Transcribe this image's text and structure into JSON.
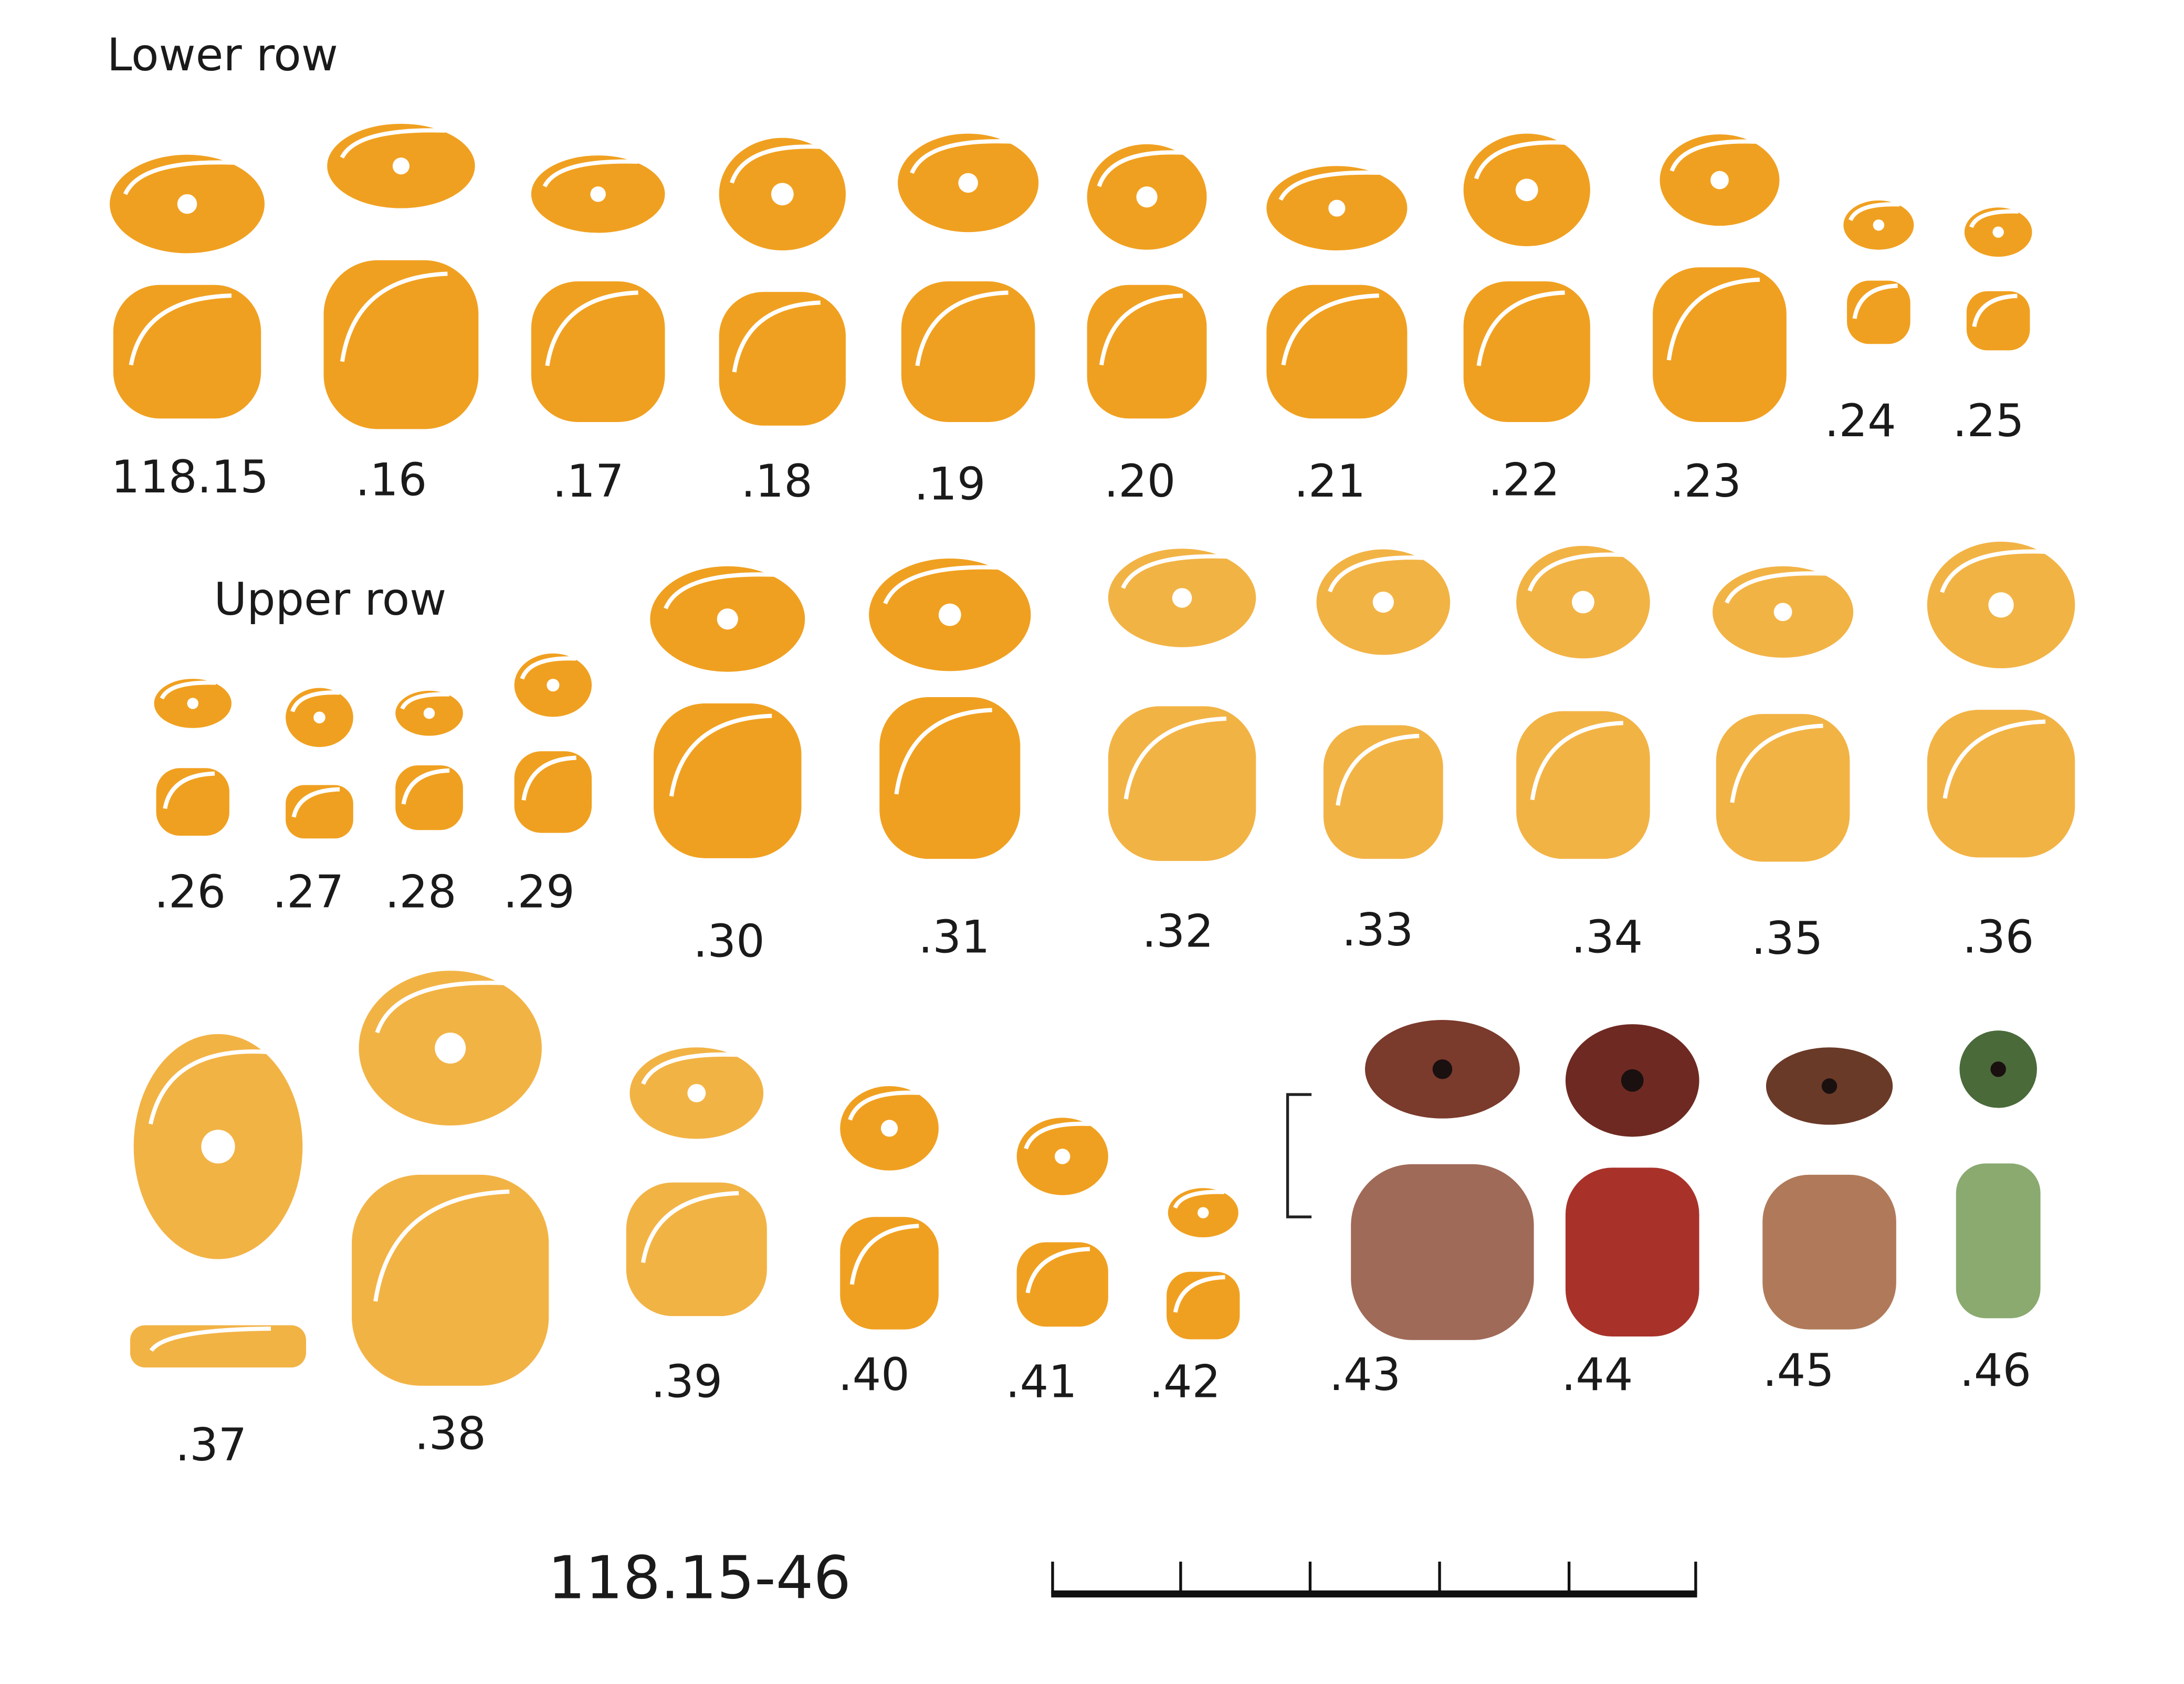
{
  "headings": {
    "lower_row": "Lower row",
    "upper_row": "Upper row"
  },
  "beads": [
    {
      "label": "118.15"
    },
    {
      "label": ".16"
    },
    {
      "label": ".17"
    },
    {
      "label": ".18"
    },
    {
      "label": ".19"
    },
    {
      "label": ".20"
    },
    {
      "label": ".21"
    },
    {
      "label": ".22"
    },
    {
      "label": ".23"
    },
    {
      "label": ".24"
    },
    {
      "label": ".25"
    },
    {
      "label": ".26"
    },
    {
      "label": ".27"
    },
    {
      "label": ".28"
    },
    {
      "label": ".29"
    },
    {
      "label": ".30"
    },
    {
      "label": ".31"
    },
    {
      "label": ".32"
    },
    {
      "label": ".33"
    },
    {
      "label": ".34"
    },
    {
      "label": ".35"
    },
    {
      "label": ".36"
    },
    {
      "label": ".37"
    },
    {
      "label": ".38"
    },
    {
      "label": ".39"
    },
    {
      "label": ".40"
    },
    {
      "label": ".41"
    },
    {
      "label": ".42"
    },
    {
      "label": ".43"
    },
    {
      "label": ".44"
    },
    {
      "label": ".45"
    },
    {
      "label": ".46"
    }
  ],
  "caption": "118.15-46"
}
